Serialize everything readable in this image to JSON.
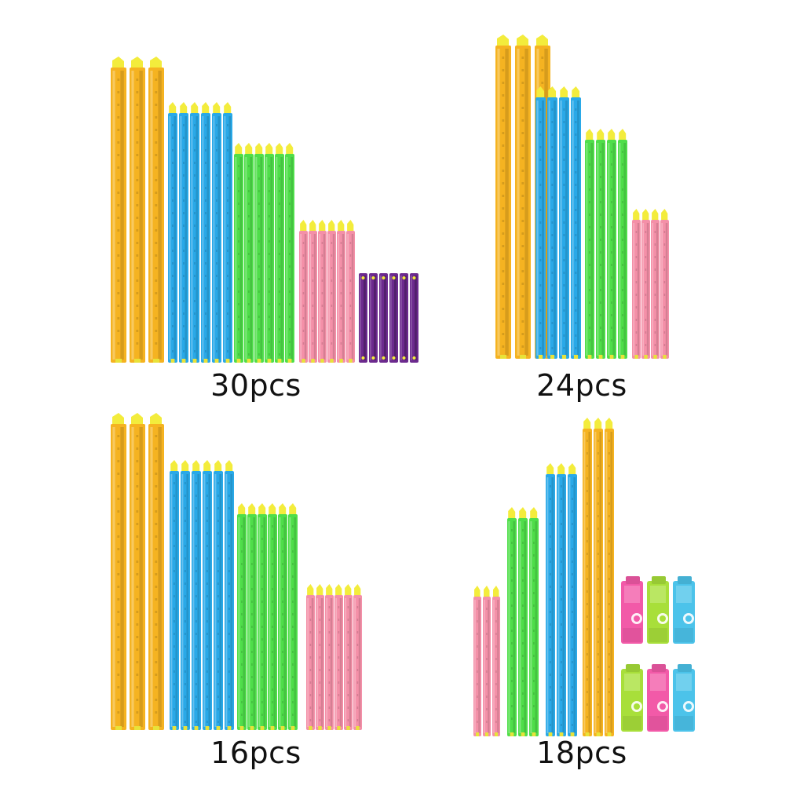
{
  "product": {
    "colors": {
      "yellow": "#f5b321",
      "blue": "#2aa9e8",
      "green": "#4fde4a",
      "pink": "#f490a8",
      "purple": "#6c2a8e",
      "clip_pink": "#f25aa8",
      "clip_green": "#a8df3a",
      "clip_blue": "#4cc3ea"
    }
  },
  "panels": [
    {
      "caption": "30pcs"
    },
    {
      "caption": "24pcs"
    },
    {
      "caption": "16pcs"
    },
    {
      "caption": "18pcs"
    }
  ]
}
